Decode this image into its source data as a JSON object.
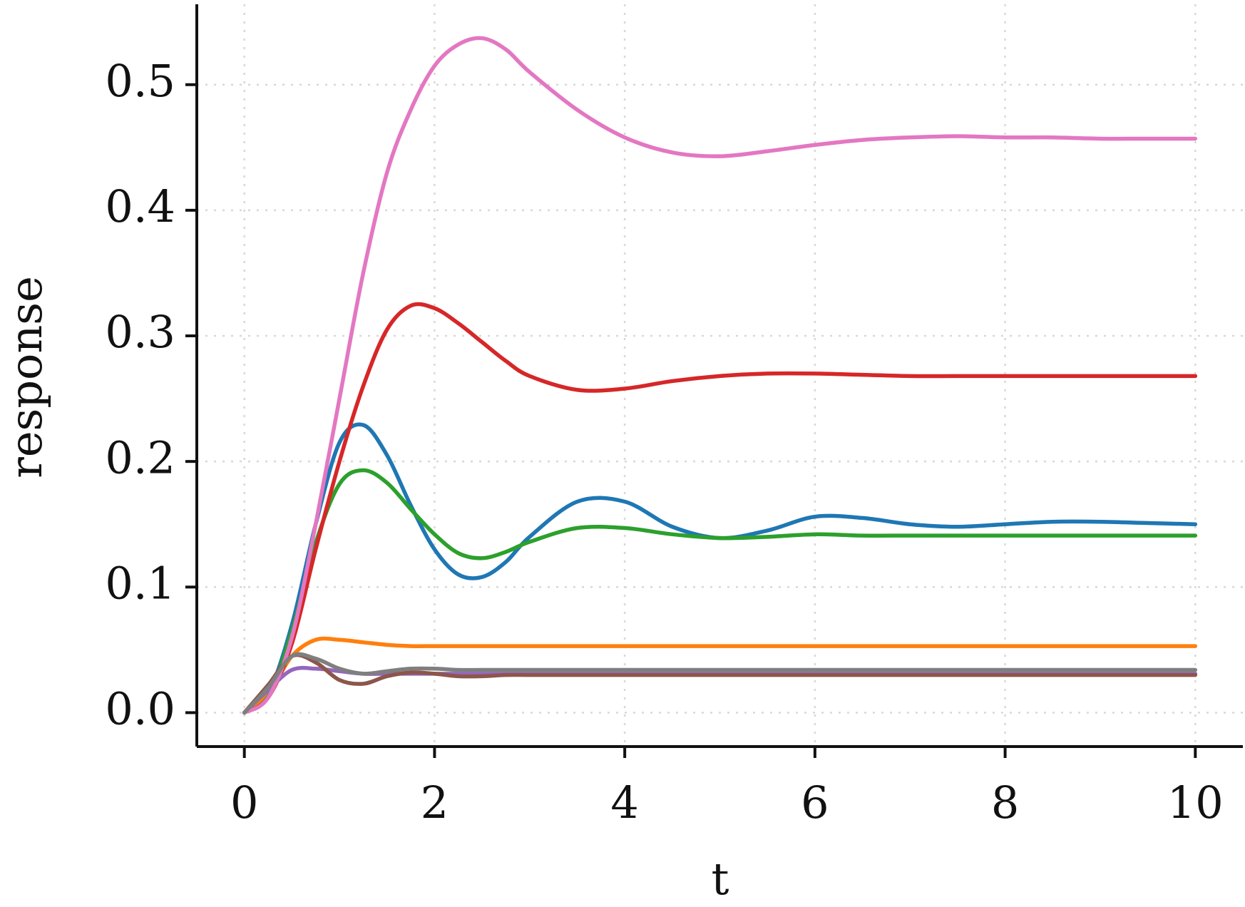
{
  "chart_data": {
    "type": "line",
    "x_label": "t",
    "y_label": "response",
    "x": [
      0,
      0.25,
      0.5,
      0.75,
      1,
      1.25,
      1.5,
      1.75,
      2,
      2.25,
      2.5,
      2.75,
      3,
      3.5,
      4,
      4.5,
      5,
      5.5,
      6,
      6.5,
      7,
      7.5,
      8,
      8.5,
      9,
      9.5,
      10
    ],
    "series": [
      {
        "color": "#1f77b4",
        "values": [
          0,
          0.015,
          0.07,
          0.15,
          0.215,
          0.229,
          0.205,
          0.165,
          0.13,
          0.11,
          0.108,
          0.12,
          0.14,
          0.168,
          0.168,
          0.148,
          0.139,
          0.145,
          0.156,
          0.155,
          0.15,
          0.148,
          0.15,
          0.152,
          0.152,
          0.151,
          0.15
        ]
      },
      {
        "color": "#ff7f0e",
        "values": [
          0,
          0.015,
          0.045,
          0.058,
          0.058,
          0.056,
          0.054,
          0.053,
          0.053,
          0.053,
          0.053,
          0.053,
          0.053,
          0.053,
          0.053,
          0.053,
          0.053,
          0.053,
          0.053,
          0.053,
          0.053,
          0.053,
          0.053,
          0.053,
          0.053,
          0.053,
          0.053
        ]
      },
      {
        "color": "#2ca02c",
        "values": [
          0,
          0.013,
          0.065,
          0.135,
          0.182,
          0.193,
          0.183,
          0.162,
          0.142,
          0.127,
          0.123,
          0.128,
          0.136,
          0.147,
          0.147,
          0.142,
          0.139,
          0.14,
          0.142,
          0.141,
          0.141,
          0.141,
          0.141,
          0.141,
          0.141,
          0.141,
          0.141
        ]
      },
      {
        "color": "#d62728",
        "values": [
          0,
          0.012,
          0.055,
          0.13,
          0.2,
          0.26,
          0.305,
          0.324,
          0.322,
          0.31,
          0.295,
          0.28,
          0.268,
          0.257,
          0.258,
          0.264,
          0.268,
          0.27,
          0.27,
          0.269,
          0.268,
          0.268,
          0.268,
          0.268,
          0.268,
          0.268,
          0.268
        ]
      },
      {
        "color": "#9467bd",
        "values": [
          0,
          0.018,
          0.034,
          0.035,
          0.033,
          0.031,
          0.031,
          0.031,
          0.031,
          0.031,
          0.031,
          0.031,
          0.031,
          0.031,
          0.031,
          0.031,
          0.031,
          0.031,
          0.031,
          0.031,
          0.031,
          0.031,
          0.031,
          0.031,
          0.031,
          0.031,
          0.031
        ]
      },
      {
        "color": "#8c564b",
        "values": [
          0,
          0.022,
          0.045,
          0.04,
          0.026,
          0.023,
          0.029,
          0.032,
          0.031,
          0.029,
          0.029,
          0.03,
          0.03,
          0.03,
          0.03,
          0.03,
          0.03,
          0.03,
          0.03,
          0.03,
          0.03,
          0.03,
          0.03,
          0.03,
          0.03,
          0.03,
          0.03
        ]
      },
      {
        "color": "#e377c2",
        "values": [
          0,
          0.012,
          0.06,
          0.15,
          0.25,
          0.35,
          0.43,
          0.48,
          0.515,
          0.532,
          0.537,
          0.528,
          0.51,
          0.48,
          0.458,
          0.446,
          0.443,
          0.447,
          0.452,
          0.456,
          0.458,
          0.459,
          0.458,
          0.458,
          0.457,
          0.457,
          0.457
        ]
      },
      {
        "color": "#7f7f7f",
        "values": [
          0,
          0.02,
          0.045,
          0.043,
          0.035,
          0.031,
          0.033,
          0.035,
          0.035,
          0.034,
          0.034,
          0.034,
          0.034,
          0.034,
          0.034,
          0.034,
          0.034,
          0.034,
          0.034,
          0.034,
          0.034,
          0.034,
          0.034,
          0.034,
          0.034,
          0.034,
          0.034
        ]
      }
    ],
    "xlim": [
      -0.5,
      10.5
    ],
    "ylim": [
      -0.027,
      0.564
    ],
    "xticks": [
      0,
      2,
      4,
      6,
      8,
      10
    ],
    "yticks": [
      {
        "value": 0,
        "label": "0.0"
      },
      0.1,
      0.2,
      0.3,
      0.4,
      0.5
    ],
    "grid": true
  }
}
